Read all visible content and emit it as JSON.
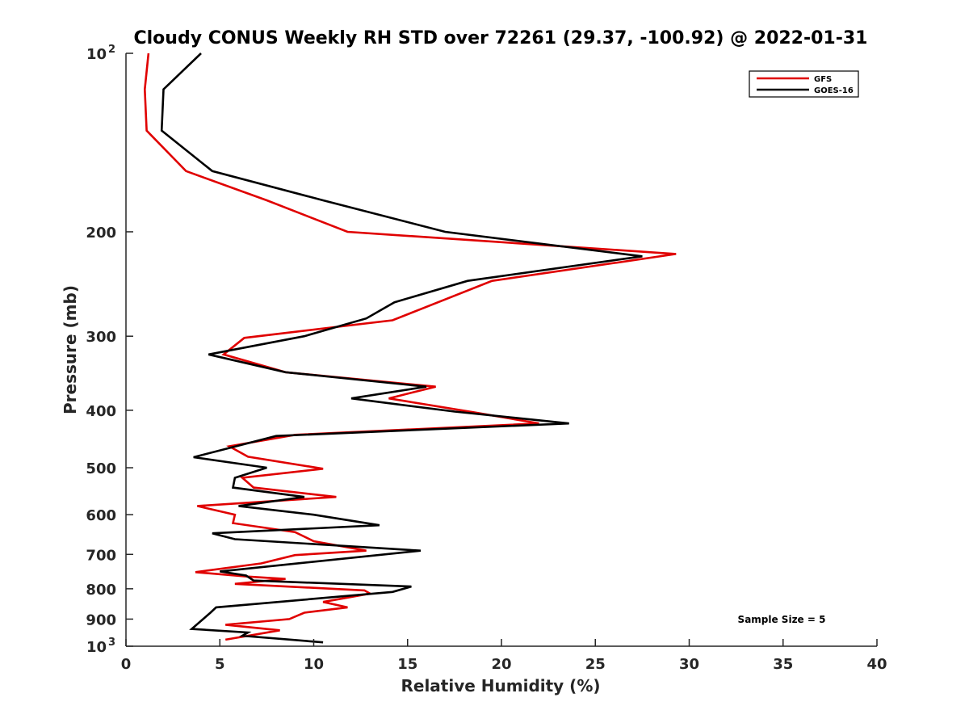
{
  "chart_data": {
    "type": "line",
    "title": "Cloudy CONUS Weekly RH STD over 72261 (29.37, -100.92) @ 2022-01-31",
    "xlabel": "Relative Humidity (%)",
    "ylabel": "Pressure (mb)",
    "xlim": [
      0,
      40
    ],
    "ylim": [
      100,
      1000
    ],
    "y_scale": "log",
    "y_reversed": true,
    "x_ticks": [
      "0",
      "5",
      "10",
      "15",
      "20",
      "25",
      "30",
      "35",
      "40"
    ],
    "y_ticks": [
      {
        "value": 100,
        "label": "10",
        "sup": "2"
      },
      {
        "value": 200,
        "label": "200",
        "sup": ""
      },
      {
        "value": 300,
        "label": "300",
        "sup": ""
      },
      {
        "value": 400,
        "label": "400",
        "sup": ""
      },
      {
        "value": 500,
        "label": "500",
        "sup": ""
      },
      {
        "value": 600,
        "label": "600",
        "sup": ""
      },
      {
        "value": 700,
        "label": "700",
        "sup": ""
      },
      {
        "value": 800,
        "label": "800",
        "sup": ""
      },
      {
        "value": 900,
        "label": "900",
        "sup": ""
      },
      {
        "value": 1000,
        "label": "10",
        "sup": "3"
      }
    ],
    "grid": false,
    "legend_position": "top-right",
    "annotation": "Sample Size = 5",
    "series": [
      {
        "name": "GFS",
        "color": "#e00000",
        "points": [
          [
            1.2,
            100
          ],
          [
            1.0,
            115
          ],
          [
            1.1,
            135
          ],
          [
            3.2,
            158
          ],
          [
            7.5,
            177
          ],
          [
            11.8,
            200
          ],
          [
            29.3,
            218
          ],
          [
            19.5,
            242
          ],
          [
            14.2,
            282
          ],
          [
            6.3,
            302
          ],
          [
            5.2,
            322
          ],
          [
            8.5,
            345
          ],
          [
            16.5,
            365
          ],
          [
            14.0,
            382
          ],
          [
            18.5,
            403
          ],
          [
            22.0,
            421
          ],
          [
            9.0,
            440
          ],
          [
            5.5,
            460
          ],
          [
            6.5,
            479
          ],
          [
            10.5,
            502
          ],
          [
            6.2,
            520
          ],
          [
            6.8,
            540
          ],
          [
            11.2,
            560
          ],
          [
            3.8,
            580
          ],
          [
            5.8,
            600
          ],
          [
            5.7,
            620
          ],
          [
            9.0,
            642
          ],
          [
            10.0,
            665
          ],
          [
            12.8,
            690
          ],
          [
            9.0,
            702
          ],
          [
            7.2,
            725
          ],
          [
            3.7,
            750
          ],
          [
            6.5,
            763
          ],
          [
            8.5,
            770
          ],
          [
            5.8,
            785
          ],
          [
            12.7,
            805
          ],
          [
            13.0,
            815
          ],
          [
            10.5,
            842
          ],
          [
            11.8,
            860
          ],
          [
            9.5,
            878
          ],
          [
            8.7,
            900
          ],
          [
            5.3,
            920
          ],
          [
            8.2,
            940
          ],
          [
            5.3,
            975
          ]
        ]
      },
      {
        "name": "GOES-16",
        "color": "#000000",
        "points": [
          [
            4.0,
            100
          ],
          [
            2.0,
            115
          ],
          [
            1.9,
            135
          ],
          [
            4.6,
            158
          ],
          [
            10.5,
            177
          ],
          [
            17.0,
            200
          ],
          [
            27.5,
            220
          ],
          [
            18.2,
            242
          ],
          [
            14.3,
            263
          ],
          [
            12.8,
            280
          ],
          [
            9.5,
            300
          ],
          [
            4.4,
            322
          ],
          [
            8.5,
            345
          ],
          [
            16.0,
            365
          ],
          [
            12.0,
            382
          ],
          [
            17.5,
            402
          ],
          [
            23.6,
            421
          ],
          [
            8.0,
            442
          ],
          [
            3.6,
            480
          ],
          [
            7.5,
            500
          ],
          [
            5.8,
            520
          ],
          [
            5.7,
            540
          ],
          [
            9.5,
            560
          ],
          [
            6.0,
            580
          ],
          [
            10.0,
            600
          ],
          [
            13.5,
            625
          ],
          [
            4.6,
            645
          ],
          [
            5.8,
            660
          ],
          [
            15.7,
            690
          ],
          [
            5.0,
            748
          ],
          [
            6.4,
            760
          ],
          [
            6.8,
            775
          ],
          [
            15.2,
            793
          ],
          [
            14.2,
            810
          ],
          [
            4.8,
            860
          ],
          [
            4.5,
            878
          ],
          [
            3.5,
            935
          ],
          [
            6.5,
            948
          ],
          [
            6.2,
            960
          ],
          [
            10.5,
            985
          ]
        ]
      }
    ]
  }
}
